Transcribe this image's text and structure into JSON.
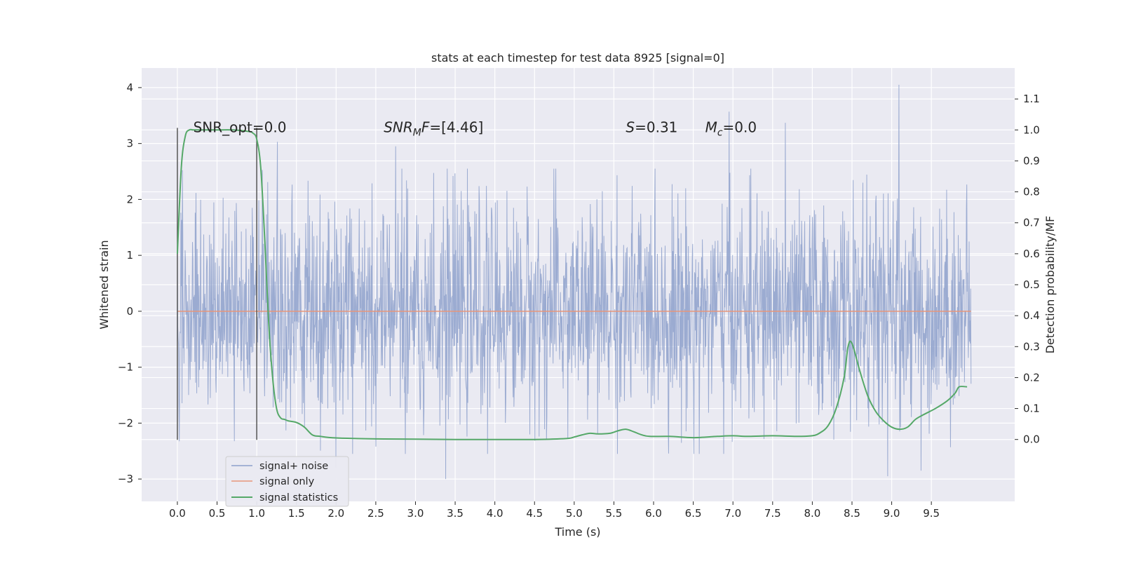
{
  "chart_data": {
    "type": "line",
    "title": "stats at each timestep for test data 8925 [signal=0]",
    "xlabel": "Time (s)",
    "ylabel": "Whitened strain",
    "y2label": "Detection probability/MF",
    "xlim": [
      -0.45,
      10.55
    ],
    "ylim": [
      -3.4,
      4.35
    ],
    "y2lim": [
      -0.2,
      1.2
    ],
    "xticks": [
      0.0,
      0.5,
      1.0,
      1.5,
      2.0,
      2.5,
      3.0,
      3.5,
      4.0,
      4.5,
      5.0,
      5.5,
      6.0,
      6.5,
      7.0,
      7.5,
      8.0,
      8.5,
      9.0,
      9.5
    ],
    "xtick_labels": [
      "0.0",
      "0.5",
      "1.0",
      "1.5",
      "2.0",
      "2.5",
      "3.0",
      "3.5",
      "4.0",
      "4.5",
      "5.0",
      "5.5",
      "6.0",
      "6.5",
      "7.0",
      "7.5",
      "8.0",
      "8.5",
      "9.0",
      "9.5"
    ],
    "yticks": [
      -3,
      -2,
      -1,
      0,
      1,
      2,
      3,
      4
    ],
    "ytick_labels": [
      "−3",
      "−2",
      "−1",
      "0",
      "1",
      "2",
      "3",
      "4"
    ],
    "y2ticks": [
      0.0,
      0.1,
      0.2,
      0.3,
      0.4,
      0.5,
      0.6,
      0.7,
      0.8,
      0.9,
      1.0,
      1.1
    ],
    "y2tick_labels": [
      "0.0",
      "0.1",
      "0.2",
      "0.3",
      "0.4",
      "0.5",
      "0.6",
      "0.7",
      "0.8",
      "0.9",
      "1.0",
      "1.1"
    ],
    "grid": true,
    "legend_position": "bottom-left",
    "series": [
      {
        "name": "signal+ noise",
        "color": "#8da0cb",
        "axis": "left",
        "description_x_range": [
          0.0,
          10.0
        ],
        "samples": 2048,
        "noise_std": 1.0,
        "notable_peaks": [
          {
            "x": 9.09,
            "y": 4.05
          },
          {
            "x": 6.95,
            "y": 3.57
          },
          {
            "x": 7.66,
            "y": 3.37
          },
          {
            "x": 2.75,
            "y": 2.95
          },
          {
            "x": 1.26,
            "y": 3.03
          },
          {
            "x": 3.38,
            "y": -3.0
          },
          {
            "x": 2.0,
            "y": -2.8
          },
          {
            "x": 8.95,
            "y": -2.95
          },
          {
            "x": 9.37,
            "y": -2.85
          }
        ]
      },
      {
        "name": "signal only",
        "color": "#e8967a",
        "axis": "left",
        "x": [
          0.0,
          10.0
        ],
        "y": [
          0.0,
          0.0
        ]
      },
      {
        "name": "signal statistics",
        "color": "#55a868",
        "axis": "right",
        "x": [
          0.0,
          0.05,
          0.1,
          0.15,
          0.2,
          0.3,
          0.5,
          0.7,
          0.9,
          0.95,
          1.0,
          1.05,
          1.1,
          1.15,
          1.2,
          1.25,
          1.3,
          1.35,
          1.4,
          1.5,
          1.6,
          1.7,
          1.8,
          2.0,
          2.5,
          3.0,
          3.5,
          4.0,
          4.5,
          4.9,
          5.0,
          5.1,
          5.2,
          5.3,
          5.45,
          5.55,
          5.65,
          5.75,
          5.85,
          5.95,
          6.2,
          6.5,
          6.8,
          7.0,
          7.2,
          7.5,
          7.8,
          8.0,
          8.1,
          8.2,
          8.3,
          8.4,
          8.45,
          8.5,
          8.6,
          8.7,
          8.8,
          8.9,
          9.0,
          9.1,
          9.2,
          9.3,
          9.4,
          9.55,
          9.7,
          9.8,
          9.85,
          9.95
        ],
        "y": [
          0.6,
          0.88,
          0.98,
          1.0,
          1.0,
          1.0,
          1.0,
          1.0,
          0.995,
          0.99,
          0.97,
          0.88,
          0.65,
          0.38,
          0.2,
          0.1,
          0.07,
          0.065,
          0.06,
          0.055,
          0.04,
          0.015,
          0.01,
          0.005,
          0.002,
          0.001,
          0.0,
          0.0,
          0.0,
          0.003,
          0.008,
          0.015,
          0.02,
          0.018,
          0.02,
          0.028,
          0.033,
          0.025,
          0.015,
          0.01,
          0.01,
          0.006,
          0.01,
          0.012,
          0.01,
          0.012,
          0.01,
          0.012,
          0.022,
          0.045,
          0.1,
          0.2,
          0.3,
          0.31,
          0.22,
          0.14,
          0.09,
          0.06,
          0.04,
          0.033,
          0.04,
          0.065,
          0.08,
          0.1,
          0.125,
          0.15,
          0.17,
          0.17
        ]
      }
    ],
    "markers": [
      {
        "x": 0.0,
        "y_range": [
          -2.3,
          3.28
        ],
        "color": "#555555"
      },
      {
        "x": 1.0,
        "y_range": [
          -2.3,
          3.28
        ],
        "color": "#555555"
      }
    ],
    "annotations": [
      {
        "kind": "plain",
        "text": "SNR_opt=0.0",
        "x": 0.2,
        "y": 3.2
      },
      {
        "kind": "snr_mf",
        "main": "SNR",
        "sub": "M",
        "rest": "F=[4.46]",
        "x": 2.6,
        "y": 3.2
      },
      {
        "kind": "s",
        "main": "S",
        "rest": "=0.31",
        "x": 5.65,
        "y": 3.2
      },
      {
        "kind": "mc",
        "main": "M",
        "sub": "c",
        "rest": "=0.0",
        "x": 6.65,
        "y": 3.2
      }
    ]
  }
}
